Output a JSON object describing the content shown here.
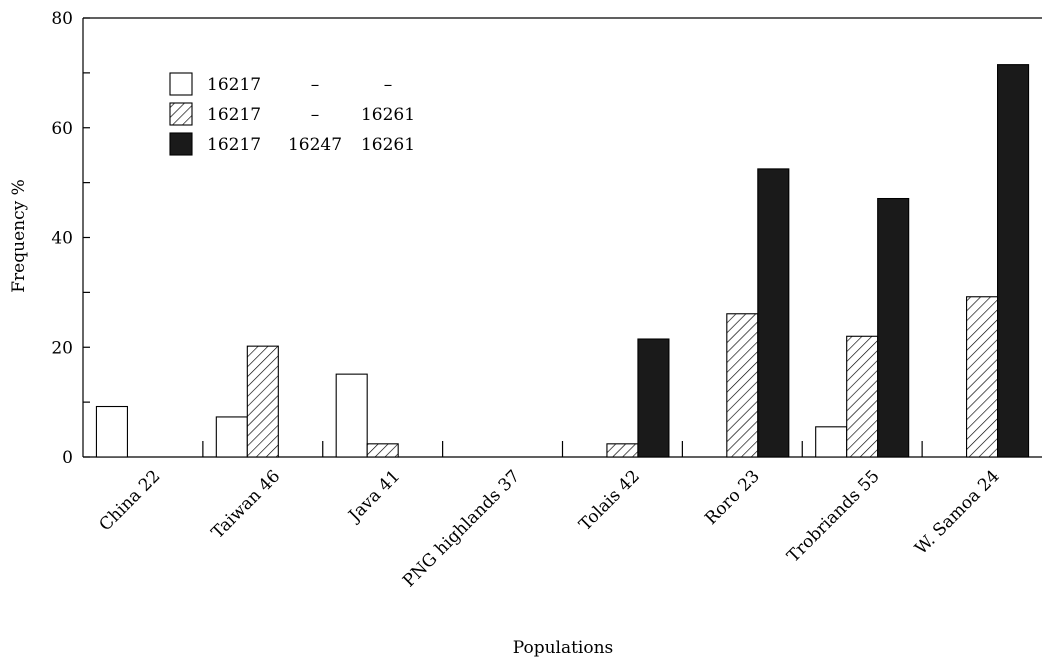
{
  "chart_data": {
    "type": "bar",
    "title": "",
    "xlabel": "Populations",
    "ylabel": "Frequency %",
    "ylim": [
      0,
      80
    ],
    "yticks": [
      "0",
      "20",
      "40",
      "60",
      "80"
    ],
    "categories": [
      "China 22",
      "Taiwan 46",
      "Java 41",
      "PNG highlands 37",
      "Tolais 42",
      "Roro 23",
      "Trobriands 55",
      "W. Samoa 24"
    ],
    "series": [
      {
        "legend": [
          "16217",
          "–",
          "–"
        ],
        "pattern": "open",
        "values": [
          9.2,
          7.3,
          15.1,
          0,
          0,
          0,
          5.5,
          0
        ]
      },
      {
        "legend": [
          "16217",
          "–",
          "16261"
        ],
        "pattern": "hatched",
        "values": [
          0,
          20.2,
          2.4,
          0,
          2.4,
          26.1,
          22.0,
          29.2
        ]
      },
      {
        "legend": [
          "16217",
          "16247",
          "16261"
        ],
        "pattern": "solid",
        "values": [
          0,
          0,
          0,
          0,
          21.5,
          52.5,
          47.1,
          71.5
        ]
      }
    ],
    "grid": false,
    "legend_position": "top-left",
    "colors": {
      "fill_solid": "#1a1a1a",
      "stroke": "#000000",
      "fill_open": "#ffffff"
    }
  }
}
